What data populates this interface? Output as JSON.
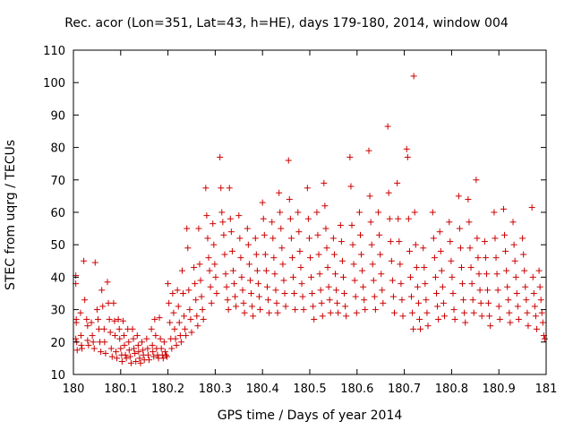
{
  "chart_data": {
    "type": "scatter",
    "title": "Rec. acor (Lon=351, Lat=43, h=HE), days 179-180, 2014, window 004",
    "xlabel": "GPS time / Days of year 2014",
    "ylabel": "STEC from uqrg / TECUs",
    "xlim": [
      180,
      181
    ],
    "ylim": [
      10,
      110
    ],
    "xticks": [
      180,
      180.1,
      180.2,
      180.3,
      180.4,
      180.5,
      180.6,
      180.7,
      180.8,
      180.9,
      181
    ],
    "xtick_labels": [
      "180",
      "180.1",
      "180.2",
      "180.3",
      "180.4",
      "180.5",
      "180.6",
      "180.7",
      "180.8",
      "180.9",
      "181"
    ],
    "yticks": [
      10,
      20,
      30,
      40,
      50,
      60,
      70,
      80,
      90,
      100,
      110
    ],
    "ytick_labels": [
      "10",
      "20",
      "30",
      "40",
      "50",
      "60",
      "70",
      "80",
      "90",
      "100",
      "110"
    ],
    "marker": "plus",
    "grid": false,
    "color": "#cc0000",
    "points": [
      [
        180.005,
        40.5
      ],
      [
        180.005,
        38
      ],
      [
        180.006,
        27
      ],
      [
        180.006,
        26
      ],
      [
        180.005,
        21
      ],
      [
        180.007,
        20
      ],
      [
        180.008,
        17.5
      ],
      [
        180.015,
        29
      ],
      [
        180.016,
        22
      ],
      [
        180.017,
        19
      ],
      [
        180.018,
        18
      ],
      [
        180.022,
        45
      ],
      [
        180.024,
        33
      ],
      [
        180.028,
        27
      ],
      [
        180.03,
        25
      ],
      [
        180.03,
        20.5
      ],
      [
        180.032,
        19
      ],
      [
        180.038,
        26
      ],
      [
        180.04,
        22
      ],
      [
        180.042,
        20
      ],
      [
        180.044,
        18
      ],
      [
        180.046,
        44.5
      ],
      [
        180.05,
        30
      ],
      [
        180.052,
        27
      ],
      [
        180.054,
        24
      ],
      [
        180.056,
        20
      ],
      [
        180.058,
        17
      ],
      [
        180.06,
        36
      ],
      [
        180.062,
        31
      ],
      [
        180.065,
        24
      ],
      [
        180.066,
        20
      ],
      [
        180.068,
        16.5
      ],
      [
        180.072,
        38.5
      ],
      [
        180.074,
        32
      ],
      [
        180.076,
        27
      ],
      [
        180.078,
        23
      ],
      [
        180.08,
        18
      ],
      [
        180.082,
        15.5
      ],
      [
        180.085,
        32
      ],
      [
        180.087,
        26.5
      ],
      [
        180.088,
        22
      ],
      [
        180.09,
        17
      ],
      [
        180.092,
        15
      ],
      [
        180.095,
        27
      ],
      [
        180.097,
        24
      ],
      [
        180.098,
        21
      ],
      [
        180.1,
        18
      ],
      [
        180.102,
        16
      ],
      [
        180.103,
        14
      ],
      [
        180.105,
        26.5
      ],
      [
        180.107,
        22
      ],
      [
        180.108,
        19
      ],
      [
        180.11,
        16
      ],
      [
        180.112,
        15
      ],
      [
        180.115,
        24
      ],
      [
        180.117,
        20
      ],
      [
        180.118,
        17.5
      ],
      [
        180.12,
        15.5
      ],
      [
        180.122,
        13.5
      ],
      [
        180.125,
        24
      ],
      [
        180.127,
        21
      ],
      [
        180.128,
        18
      ],
      [
        180.13,
        16.5
      ],
      [
        180.132,
        14
      ],
      [
        180.135,
        22
      ],
      [
        180.137,
        19
      ],
      [
        180.138,
        17
      ],
      [
        180.14,
        15
      ],
      [
        180.142,
        13.5
      ],
      [
        180.145,
        20
      ],
      [
        180.147,
        17.5
      ],
      [
        180.148,
        16
      ],
      [
        180.15,
        14.5
      ],
      [
        180.155,
        21
      ],
      [
        180.157,
        18
      ],
      [
        180.158,
        16
      ],
      [
        180.16,
        14.5
      ],
      [
        180.165,
        24
      ],
      [
        180.167,
        19
      ],
      [
        180.168,
        17
      ],
      [
        180.17,
        15.5
      ],
      [
        180.172,
        27
      ],
      [
        180.174,
        22
      ],
      [
        180.176,
        18
      ],
      [
        180.178,
        16
      ],
      [
        180.18,
        15
      ],
      [
        180.182,
        27.5
      ],
      [
        180.184,
        21
      ],
      [
        180.186,
        18
      ],
      [
        180.188,
        16
      ],
      [
        180.19,
        15
      ],
      [
        180.192,
        20
      ],
      [
        180.194,
        17
      ],
      [
        180.196,
        16
      ],
      [
        180.198,
        15.5
      ],
      [
        180.2,
        38
      ],
      [
        180.202,
        32
      ],
      [
        180.204,
        26
      ],
      [
        180.206,
        21
      ],
      [
        180.208,
        18
      ],
      [
        180.21,
        35
      ],
      [
        180.212,
        29
      ],
      [
        180.214,
        24
      ],
      [
        180.216,
        21
      ],
      [
        180.218,
        19
      ],
      [
        180.22,
        36
      ],
      [
        180.222,
        31
      ],
      [
        180.224,
        26
      ],
      [
        180.226,
        22
      ],
      [
        180.228,
        20
      ],
      [
        180.23,
        42
      ],
      [
        180.232,
        35
      ],
      [
        180.234,
        28
      ],
      [
        180.236,
        24
      ],
      [
        180.238,
        22
      ],
      [
        180.24,
        55
      ],
      [
        180.242,
        49
      ],
      [
        180.244,
        36
      ],
      [
        180.246,
        30
      ],
      [
        180.248,
        27
      ],
      [
        180.25,
        23
      ],
      [
        180.255,
        43
      ],
      [
        180.257,
        38
      ],
      [
        180.259,
        33
      ],
      [
        180.261,
        28
      ],
      [
        180.263,
        25
      ],
      [
        180.265,
        55
      ],
      [
        180.267,
        44
      ],
      [
        180.269,
        39
      ],
      [
        180.271,
        34
      ],
      [
        180.273,
        30
      ],
      [
        180.275,
        27
      ],
      [
        180.28,
        67.5
      ],
      [
        180.282,
        59
      ],
      [
        180.284,
        52
      ],
      [
        180.286,
        46
      ],
      [
        180.288,
        42
      ],
      [
        180.29,
        37
      ],
      [
        180.292,
        32
      ],
      [
        180.295,
        56.5
      ],
      [
        180.297,
        50
      ],
      [
        180.299,
        44
      ],
      [
        180.301,
        40
      ],
      [
        180.303,
        35
      ],
      [
        180.31,
        77
      ],
      [
        180.312,
        67.5
      ],
      [
        180.314,
        60
      ],
      [
        180.316,
        57
      ],
      [
        180.318,
        53
      ],
      [
        180.32,
        47
      ],
      [
        180.322,
        41
      ],
      [
        180.324,
        37
      ],
      [
        180.326,
        33
      ],
      [
        180.328,
        30
      ],
      [
        180.33,
        67.5
      ],
      [
        180.332,
        58
      ],
      [
        180.334,
        54
      ],
      [
        180.336,
        48
      ],
      [
        180.338,
        42
      ],
      [
        180.34,
        38
      ],
      [
        180.342,
        34
      ],
      [
        180.344,
        31
      ],
      [
        180.35,
        59
      ],
      [
        180.352,
        52
      ],
      [
        180.354,
        46
      ],
      [
        180.356,
        40
      ],
      [
        180.358,
        36
      ],
      [
        180.36,
        32
      ],
      [
        180.362,
        29
      ],
      [
        180.368,
        55
      ],
      [
        180.37,
        50
      ],
      [
        180.372,
        44
      ],
      [
        180.374,
        39
      ],
      [
        180.376,
        35
      ],
      [
        180.378,
        31
      ],
      [
        180.38,
        28
      ],
      [
        180.385,
        52
      ],
      [
        180.387,
        47
      ],
      [
        180.389,
        42
      ],
      [
        180.391,
        38
      ],
      [
        180.393,
        34
      ],
      [
        180.395,
        30
      ],
      [
        180.4,
        63
      ],
      [
        180.402,
        58
      ],
      [
        180.404,
        53
      ],
      [
        180.406,
        47
      ],
      [
        180.408,
        42
      ],
      [
        180.41,
        37
      ],
      [
        180.412,
        33
      ],
      [
        180.414,
        29
      ],
      [
        180.42,
        57
      ],
      [
        180.422,
        52
      ],
      [
        180.424,
        46
      ],
      [
        180.426,
        41
      ],
      [
        180.428,
        36
      ],
      [
        180.43,
        32
      ],
      [
        180.432,
        29
      ],
      [
        180.435,
        66
      ],
      [
        180.437,
        60
      ],
      [
        180.439,
        55
      ],
      [
        180.441,
        49
      ],
      [
        180.443,
        44
      ],
      [
        180.445,
        39
      ],
      [
        180.447,
        35
      ],
      [
        180.449,
        31
      ],
      [
        180.455,
        76
      ],
      [
        180.457,
        64
      ],
      [
        180.459,
        58
      ],
      [
        180.461,
        52
      ],
      [
        180.463,
        46
      ],
      [
        180.465,
        40
      ],
      [
        180.467,
        35
      ],
      [
        180.469,
        30
      ],
      [
        180.475,
        60
      ],
      [
        180.477,
        54
      ],
      [
        180.479,
        48
      ],
      [
        180.481,
        43
      ],
      [
        180.483,
        38
      ],
      [
        180.485,
        34
      ],
      [
        180.487,
        30
      ],
      [
        180.495,
        67.5
      ],
      [
        180.497,
        58
      ],
      [
        180.499,
        52
      ],
      [
        180.501,
        46
      ],
      [
        180.503,
        40
      ],
      [
        180.505,
        35
      ],
      [
        180.507,
        31
      ],
      [
        180.509,
        27
      ],
      [
        180.515,
        60
      ],
      [
        180.517,
        53
      ],
      [
        180.519,
        47
      ],
      [
        180.521,
        41
      ],
      [
        180.523,
        36
      ],
      [
        180.525,
        32
      ],
      [
        180.527,
        28
      ],
      [
        180.53,
        69
      ],
      [
        180.532,
        62
      ],
      [
        180.534,
        55
      ],
      [
        180.536,
        49
      ],
      [
        180.538,
        43
      ],
      [
        180.54,
        37
      ],
      [
        180.542,
        33
      ],
      [
        180.544,
        29
      ],
      [
        180.55,
        52
      ],
      [
        180.552,
        47
      ],
      [
        180.554,
        41
      ],
      [
        180.556,
        36
      ],
      [
        180.558,
        32
      ],
      [
        180.56,
        29
      ],
      [
        180.565,
        56
      ],
      [
        180.567,
        51
      ],
      [
        180.569,
        45
      ],
      [
        180.571,
        40
      ],
      [
        180.573,
        35
      ],
      [
        180.575,
        31
      ],
      [
        180.577,
        28
      ],
      [
        180.585,
        77
      ],
      [
        180.587,
        68
      ],
      [
        180.589,
        56
      ],
      [
        180.591,
        50
      ],
      [
        180.593,
        44
      ],
      [
        180.595,
        39
      ],
      [
        180.597,
        34
      ],
      [
        180.599,
        29
      ],
      [
        180.605,
        60
      ],
      [
        180.607,
        53
      ],
      [
        180.609,
        47
      ],
      [
        180.611,
        42
      ],
      [
        180.613,
        37
      ],
      [
        180.615,
        33
      ],
      [
        180.617,
        30
      ],
      [
        180.625,
        79
      ],
      [
        180.627,
        65
      ],
      [
        180.629,
        57
      ],
      [
        180.631,
        50
      ],
      [
        180.633,
        44
      ],
      [
        180.635,
        39
      ],
      [
        180.637,
        34
      ],
      [
        180.639,
        30
      ],
      [
        180.645,
        60
      ],
      [
        180.647,
        53
      ],
      [
        180.649,
        47
      ],
      [
        180.651,
        41
      ],
      [
        180.653,
        36
      ],
      [
        180.655,
        32
      ],
      [
        180.665,
        86.5
      ],
      [
        180.667,
        66
      ],
      [
        180.669,
        58
      ],
      [
        180.671,
        51
      ],
      [
        180.673,
        45
      ],
      [
        180.675,
        39
      ],
      [
        180.677,
        34
      ],
      [
        180.679,
        29
      ],
      [
        180.685,
        69
      ],
      [
        180.687,
        58
      ],
      [
        180.689,
        51
      ],
      [
        180.691,
        44
      ],
      [
        180.693,
        38
      ],
      [
        180.695,
        33
      ],
      [
        180.697,
        28
      ],
      [
        180.705,
        79.5
      ],
      [
        180.707,
        77
      ],
      [
        180.709,
        58
      ],
      [
        180.711,
        48
      ],
      [
        180.713,
        40
      ],
      [
        180.715,
        34
      ],
      [
        180.717,
        29
      ],
      [
        180.719,
        24
      ],
      [
        180.72,
        102
      ],
      [
        180.722,
        60
      ],
      [
        180.724,
        50
      ],
      [
        180.726,
        43
      ],
      [
        180.728,
        37
      ],
      [
        180.73,
        32
      ],
      [
        180.732,
        27
      ],
      [
        180.734,
        24
      ],
      [
        180.74,
        49
      ],
      [
        180.742,
        43
      ],
      [
        180.744,
        38
      ],
      [
        180.746,
        33
      ],
      [
        180.748,
        29
      ],
      [
        180.75,
        25
      ],
      [
        180.76,
        60
      ],
      [
        180.762,
        52
      ],
      [
        180.764,
        46
      ],
      [
        180.766,
        40
      ],
      [
        180.768,
        35
      ],
      [
        180.77,
        31
      ],
      [
        180.772,
        27
      ],
      [
        180.775,
        54
      ],
      [
        180.777,
        48
      ],
      [
        180.779,
        42
      ],
      [
        180.781,
        37
      ],
      [
        180.783,
        32
      ],
      [
        180.785,
        28
      ],
      [
        180.795,
        57
      ],
      [
        180.797,
        51
      ],
      [
        180.799,
        45
      ],
      [
        180.801,
        40
      ],
      [
        180.803,
        35
      ],
      [
        180.805,
        30
      ],
      [
        180.807,
        27
      ],
      [
        180.815,
        65
      ],
      [
        180.817,
        55
      ],
      [
        180.819,
        49
      ],
      [
        180.821,
        43
      ],
      [
        180.823,
        38
      ],
      [
        180.825,
        33
      ],
      [
        180.827,
        29
      ],
      [
        180.829,
        26
      ],
      [
        180.835,
        64
      ],
      [
        180.837,
        57
      ],
      [
        180.839,
        49
      ],
      [
        180.841,
        43
      ],
      [
        180.843,
        38
      ],
      [
        180.845,
        33
      ],
      [
        180.847,
        29
      ],
      [
        180.852,
        70
      ],
      [
        180.854,
        52
      ],
      [
        180.856,
        46
      ],
      [
        180.858,
        41
      ],
      [
        180.86,
        36
      ],
      [
        180.862,
        32
      ],
      [
        180.864,
        28
      ],
      [
        180.87,
        51
      ],
      [
        180.872,
        46
      ],
      [
        180.874,
        41
      ],
      [
        180.876,
        36
      ],
      [
        180.878,
        32
      ],
      [
        180.88,
        28
      ],
      [
        180.882,
        25
      ],
      [
        180.89,
        60
      ],
      [
        180.892,
        52
      ],
      [
        180.894,
        46
      ],
      [
        180.896,
        41
      ],
      [
        180.898,
        36
      ],
      [
        180.9,
        31
      ],
      [
        180.902,
        27
      ],
      [
        180.91,
        61
      ],
      [
        180.912,
        53
      ],
      [
        180.914,
        48
      ],
      [
        180.916,
        42
      ],
      [
        180.918,
        37
      ],
      [
        180.92,
        33
      ],
      [
        180.922,
        29
      ],
      [
        180.924,
        26
      ],
      [
        180.93,
        57
      ],
      [
        180.932,
        50
      ],
      [
        180.934,
        45
      ],
      [
        180.936,
        40
      ],
      [
        180.938,
        35
      ],
      [
        180.94,
        31
      ],
      [
        180.942,
        27
      ],
      [
        180.95,
        52
      ],
      [
        180.952,
        47
      ],
      [
        180.954,
        42
      ],
      [
        180.956,
        37
      ],
      [
        180.958,
        33
      ],
      [
        180.96,
        29
      ],
      [
        180.962,
        25
      ],
      [
        180.97,
        61.5
      ],
      [
        180.972,
        40
      ],
      [
        180.974,
        35
      ],
      [
        180.976,
        31
      ],
      [
        180.978,
        28
      ],
      [
        180.98,
        24
      ],
      [
        180.985,
        42
      ],
      [
        180.987,
        37
      ],
      [
        180.989,
        33
      ],
      [
        180.991,
        29
      ],
      [
        180.993,
        26
      ],
      [
        180.995,
        22
      ],
      [
        180.997,
        21
      ]
    ]
  }
}
